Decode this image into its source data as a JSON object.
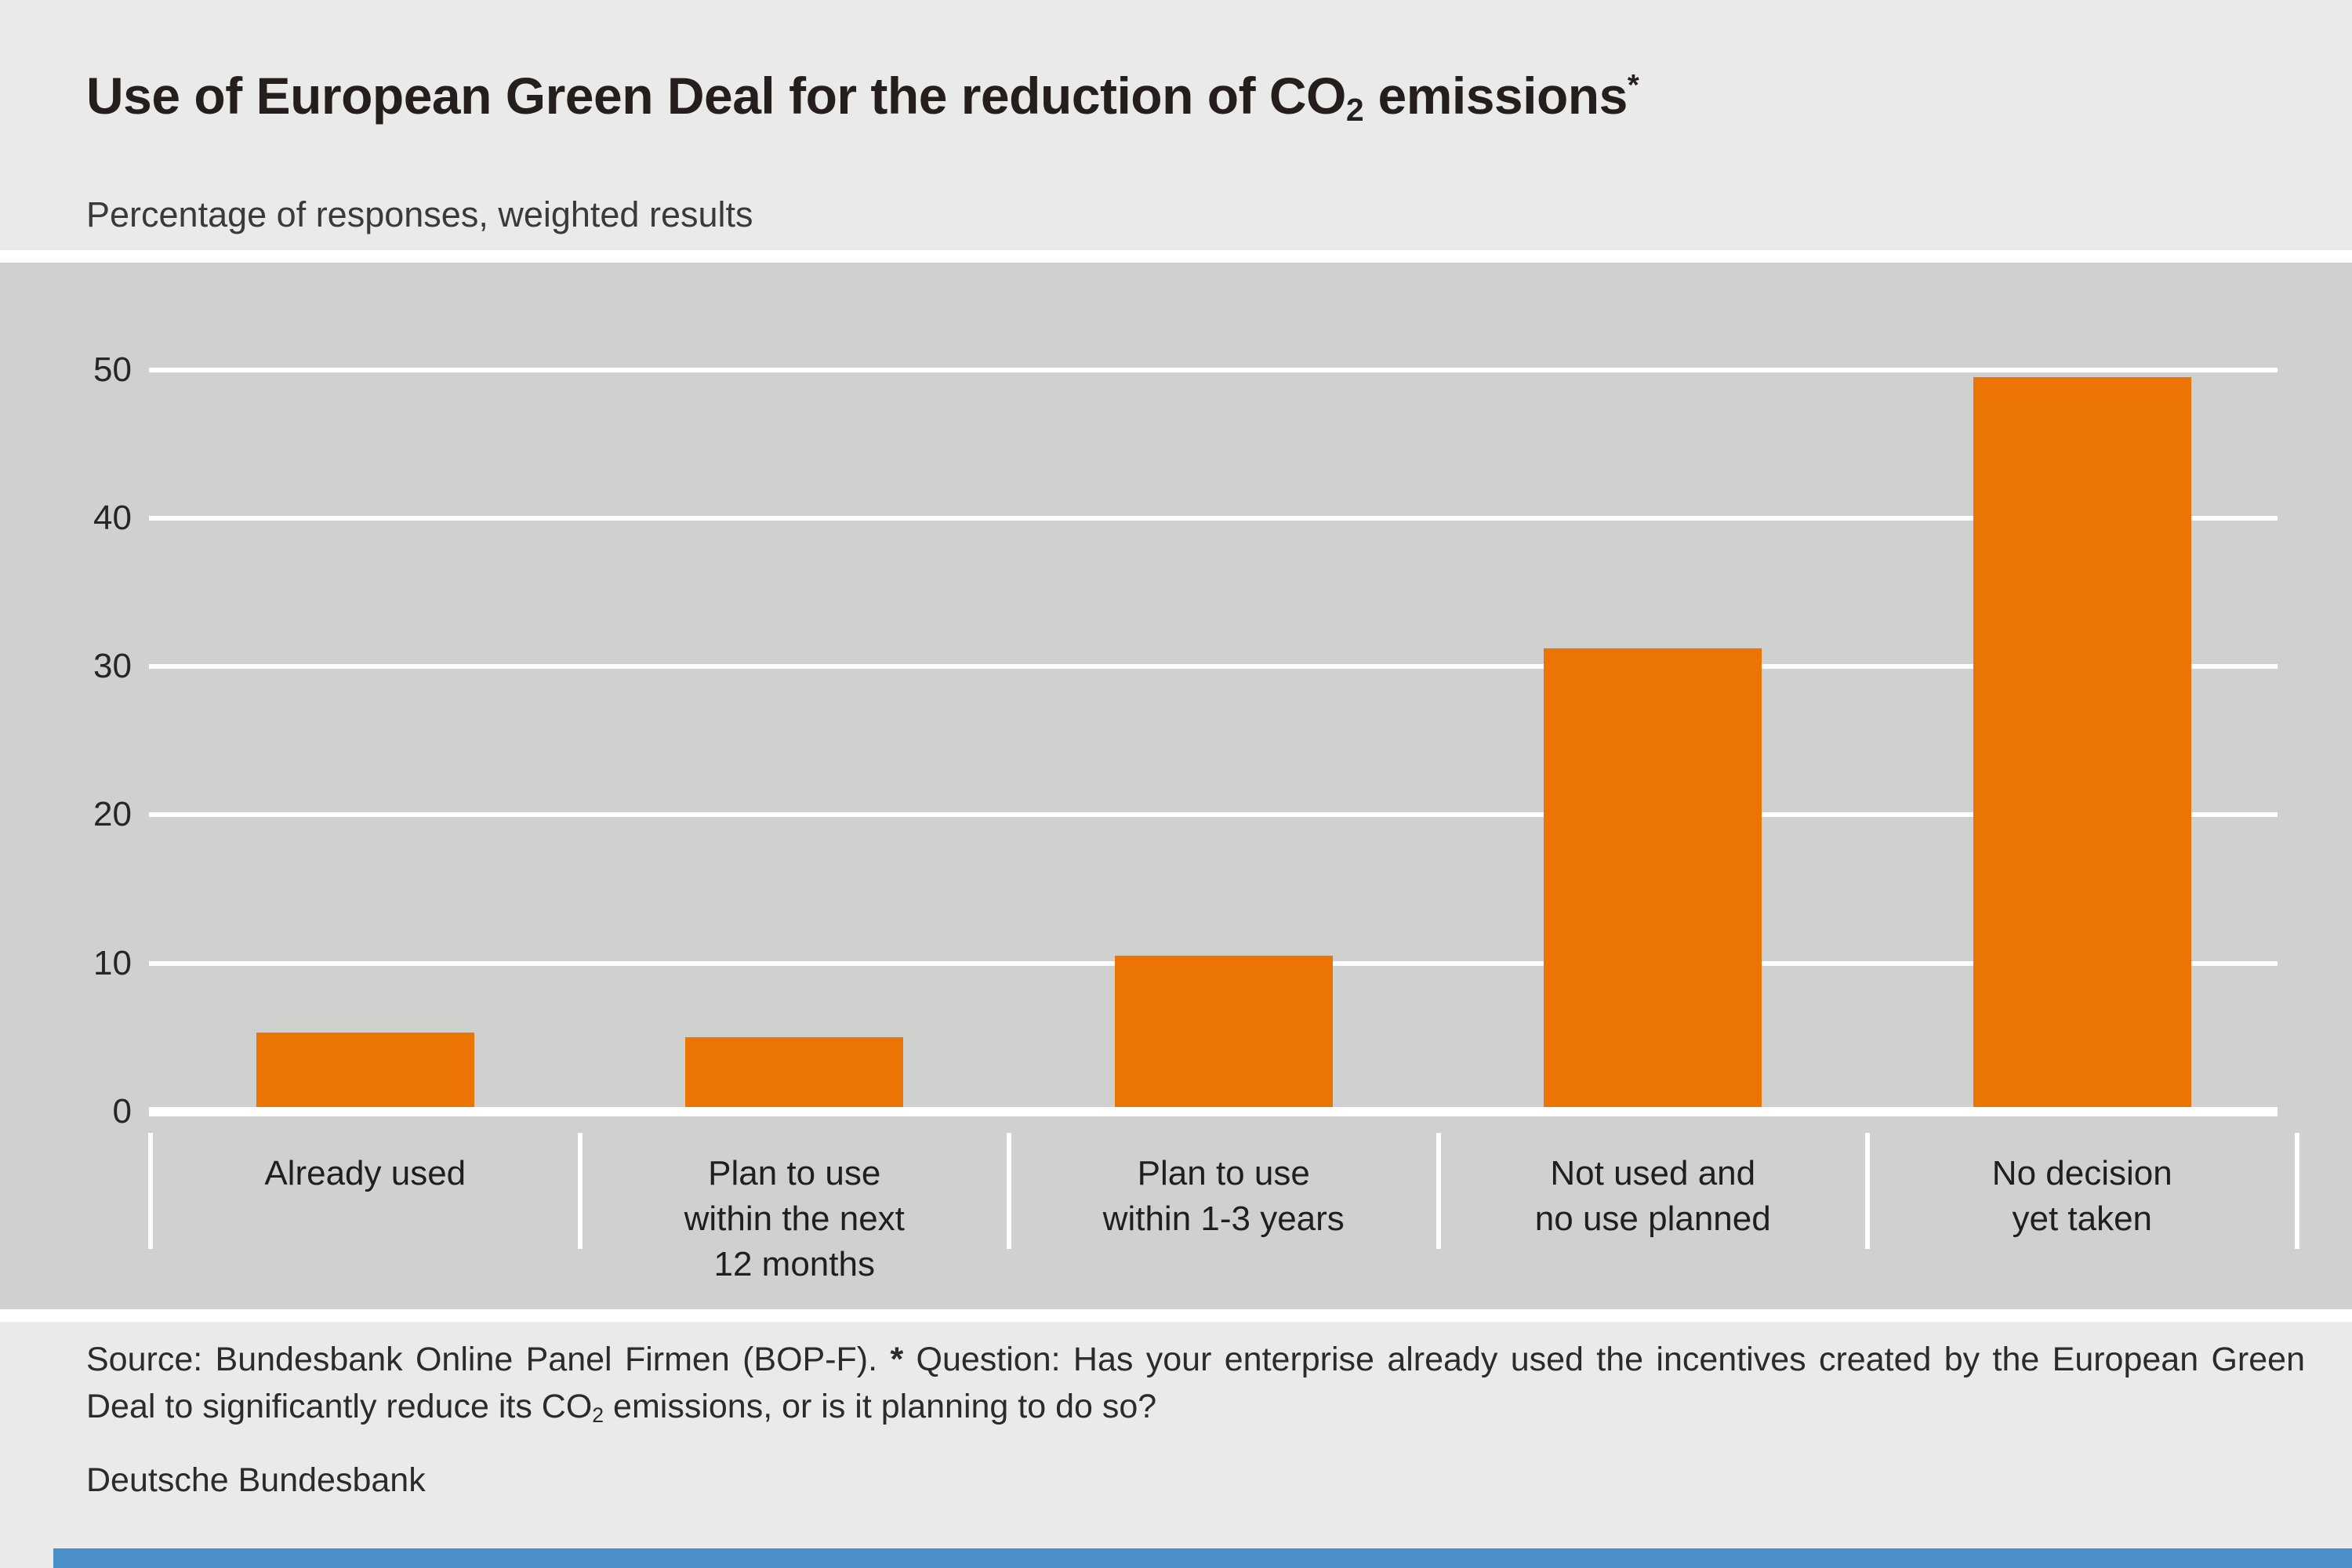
{
  "brand_colors": {
    "accent_orange": "#ec7405",
    "accent_blue": "#4a8fc9"
  },
  "header": {
    "title_prefix": "Use of European Green Deal for the reduction of CO",
    "title_subscript": "2",
    "title_suffix": " emissions",
    "title_footnote_marker": "*",
    "subtitle": "Percentage of responses, weighted results"
  },
  "chart_data": {
    "type": "bar",
    "title": "Use of European Green Deal for the reduction of CO2 emissions*",
    "subtitle": "Percentage of responses, weighted results",
    "categories": [
      "Already used",
      "Plan to use within the next 12 months",
      "Plan to use within 1-3 years",
      "Not used and no use planned",
      "No decision yet taken"
    ],
    "category_lines": [
      [
        "Already used"
      ],
      [
        "Plan to use",
        "within the next",
        "12 months"
      ],
      [
        "Plan to use",
        "within 1-3 years"
      ],
      [
        "Not used and",
        "no use planned"
      ],
      [
        "No decision",
        "yet taken"
      ]
    ],
    "values": [
      5.0,
      4.7,
      10.2,
      30.9,
      49.2
    ],
    "unit": "percent",
    "yticks": [
      0,
      10,
      20,
      30,
      40,
      50
    ],
    "ylim": [
      0,
      57
    ],
    "bar_color": "#ec7405",
    "grid": true,
    "gridline_color": "#ffffff",
    "plot_background": "#d0d0cf",
    "legend": false
  },
  "footer": {
    "source_text": "Source: Bundesbank Online Panel Firmen (BOP-F).",
    "footnote_marker": "*",
    "question_prefix": "Question: Has your enterprise already used the incentives created by the European Green Deal to significantly reduce its CO",
    "question_subscript": "2",
    "question_suffix": " emissions, or is it planning to do so?",
    "brand": "Deutsche Bundesbank"
  }
}
